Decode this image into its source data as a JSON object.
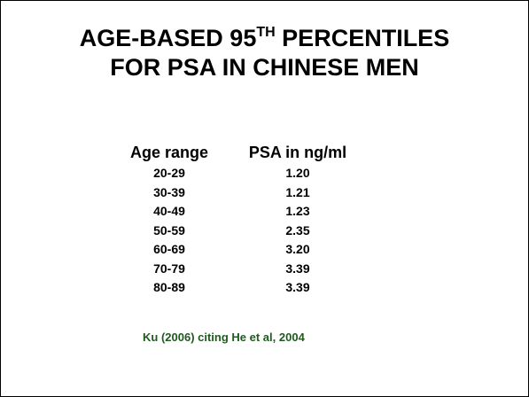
{
  "slide": {
    "title_line1_prefix": "AGE-BASED 95",
    "title_line1_sup": "TH",
    "title_line1_suffix": " PERCENTILES",
    "title_line2": "FOR PSA IN CHINESE MEN"
  },
  "table": {
    "headers": {
      "age": "Age range",
      "psa": "PSA in ng/ml"
    },
    "rows": [
      {
        "age": "20-29",
        "psa": "1.20"
      },
      {
        "age": "30-39",
        "psa": "1.21"
      },
      {
        "age": "40-49",
        "psa": "1.23"
      },
      {
        "age": "50-59",
        "psa": "2.35"
      },
      {
        "age": "60-69",
        "psa": "3.20"
      },
      {
        "age": "70-79",
        "psa": "3.39"
      },
      {
        "age": "80-89",
        "psa": "3.39"
      }
    ]
  },
  "source": "Ku (2006) citing He et al, 2004",
  "colors": {
    "text": "#000000",
    "source_text": "#1f5a1f",
    "background": "#ffffff"
  }
}
